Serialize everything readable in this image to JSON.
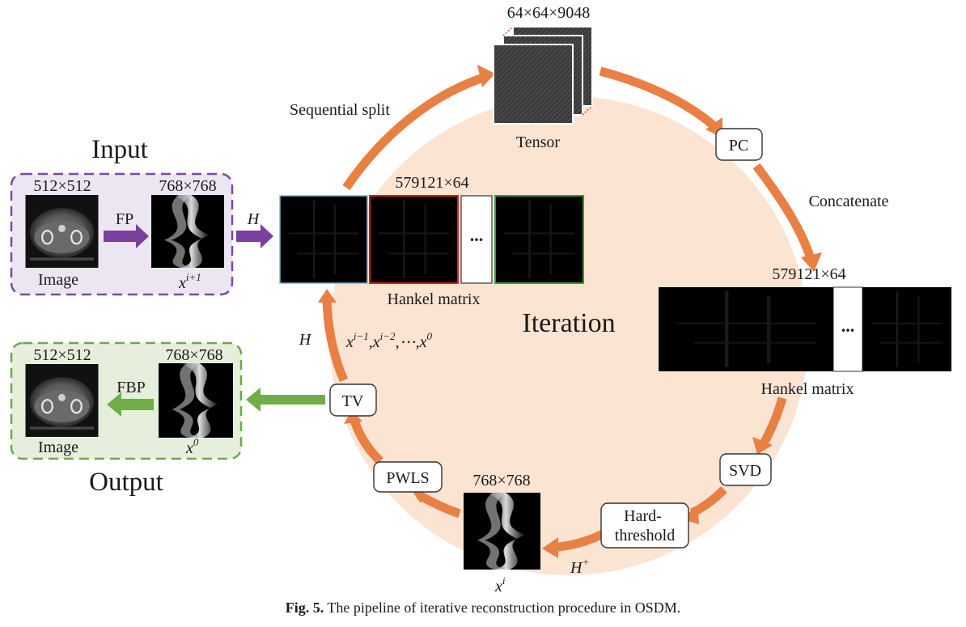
{
  "colors": {
    "iteration_circle": "#fce4d3",
    "arrow_orange": "#e88044",
    "input_border": "#7b4aa0",
    "input_fill": "#ece6f2",
    "input_arrow": "#7b3fa0",
    "output_border": "#6aa84f",
    "output_fill": "#e6efdb",
    "output_arrow": "#70ad47",
    "hankel_block_borders": [
      "#7fb6d8",
      "#d32020",
      "#2e9e3a"
    ]
  },
  "icons": {
    "ct_slice": "ct-image-icon",
    "sinogram": "sinogram-icon",
    "tensor_stack": "tensor-stack-icon",
    "hankel_matrix": "hankel-matrix-icon"
  },
  "input": {
    "title": "Input",
    "image_size": "512×512",
    "sino_size": "768×768",
    "image_label": "Image",
    "sino_label_base": "x",
    "sino_label_sup": "i+1",
    "fp_label": "FP",
    "h_label": "H"
  },
  "output": {
    "title": "Output",
    "image_size": "512×512",
    "sino_size": "768×768",
    "image_label": "Image",
    "sino_label_base": "x",
    "sino_label_sup": "0",
    "fbp_label": "FBP"
  },
  "iteration": {
    "title": "Iteration",
    "tensor_size": "64×64×9048",
    "tensor_label": "Tensor",
    "sequential_split": "Sequential split",
    "pc": "PC",
    "concatenate": "Concatenate",
    "hankel_top_size": "579121×64",
    "hankel_top_label": "Hankel matrix",
    "hankel_right_size": "579121×64",
    "hankel_right_label": "Hankel matrix",
    "ellipsis": "...",
    "svd": "SVD",
    "hard_threshold_line1": "Hard-",
    "hard_threshold_line2": "threshold",
    "h_plus_base": "H",
    "h_plus_sup": "+",
    "xi_size": "768×768",
    "xi_base": "x",
    "xi_sup": "i",
    "pwls": "PWLS",
    "tv": "TV",
    "h_left": "H",
    "prior_sequence": {
      "base": "x",
      "terms": [
        "i−1",
        "i−2"
      ],
      "dots": "⋯",
      "last": "0"
    }
  },
  "caption": {
    "prefix": "Fig. 5.",
    "text": " The pipeline of iterative reconstruction procedure in OSDM."
  }
}
